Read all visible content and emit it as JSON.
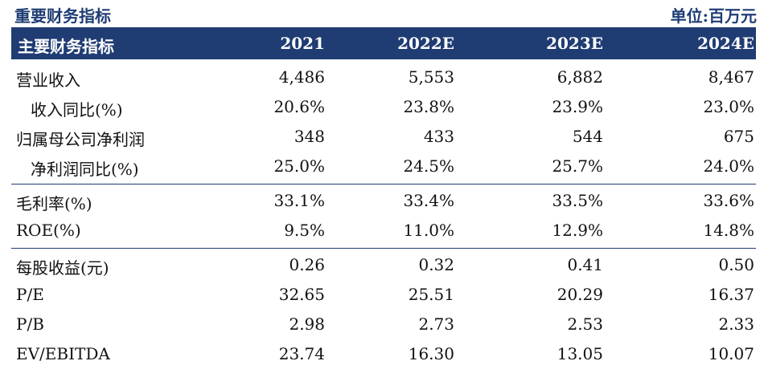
{
  "title": "重要财务指标",
  "unit": "单位:百万元",
  "header": {
    "label": "主要财务指标",
    "years": [
      "2021",
      "2022E",
      "2023E",
      "2024E"
    ]
  },
  "rows": [
    {
      "label": "营业收入",
      "values": [
        "4,486",
        "5,553",
        "6,882",
        "8,467"
      ]
    },
    {
      "label": "收入同比(%)",
      "values": [
        "20.6%",
        "23.8%",
        "23.9%",
        "23.0%"
      ]
    },
    {
      "label": "归属母公司净利润",
      "values": [
        "348",
        "433",
        "544",
        "675"
      ]
    },
    {
      "label": "净利润同比(%)",
      "values": [
        "25.0%",
        "24.5%",
        "25.7%",
        "24.0%"
      ]
    },
    {
      "label": "毛利率(%)",
      "values": [
        "33.1%",
        "33.4%",
        "33.5%",
        "33.6%"
      ]
    },
    {
      "label": "ROE(%)",
      "values": [
        "9.5%",
        "11.0%",
        "12.9%",
        "14.8%"
      ]
    },
    {
      "label": "每股收益(元)",
      "values": [
        "0.26",
        "0.32",
        "0.41",
        "0.50"
      ]
    },
    {
      "label": "P/E",
      "values": [
        "32.65",
        "25.51",
        "20.29",
        "16.37"
      ]
    },
    {
      "label": "P/B",
      "values": [
        "2.98",
        "2.73",
        "2.53",
        "2.33"
      ]
    },
    {
      "label": "EV/EBITDA",
      "values": [
        "23.74",
        "16.30",
        "13.05",
        "10.07"
      ]
    }
  ]
}
